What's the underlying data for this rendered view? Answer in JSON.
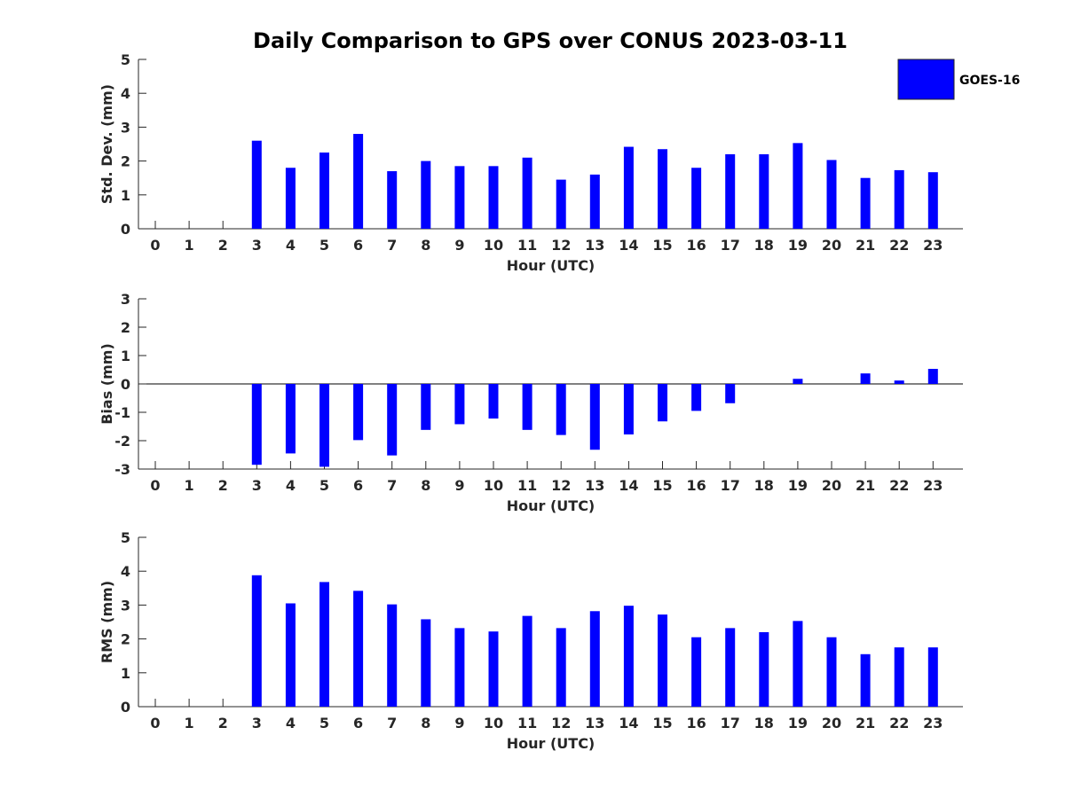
{
  "title": "Daily Comparison to GPS over CONUS 2023-03-11",
  "colors": {
    "bar": "#0000ff",
    "axis": "#262626",
    "zero_line": "#000000"
  },
  "legend": {
    "label": "GOES-16",
    "placement": "top-right"
  },
  "chart_data": [
    {
      "type": "bar",
      "ylabel": "Std. Dev. (mm)",
      "xlabel": "Hour (UTC)",
      "ylim": [
        0,
        5
      ],
      "yticks": [
        0,
        1,
        2,
        3,
        4,
        5
      ],
      "x": [
        0,
        1,
        2,
        3,
        4,
        5,
        6,
        7,
        8,
        9,
        10,
        11,
        12,
        13,
        14,
        15,
        16,
        17,
        18,
        19,
        20,
        21,
        22,
        23
      ],
      "xtick_labels": [
        "0",
        "1",
        "2",
        "3",
        "4",
        "5",
        "6",
        "7",
        "8",
        "9",
        "10",
        "11",
        "12",
        "13",
        "14",
        "15",
        "16",
        "17",
        "18",
        "19",
        "20",
        "21",
        "22",
        "23"
      ],
      "series": [
        {
          "name": "GOES-16",
          "values": [
            null,
            null,
            null,
            2.6,
            1.8,
            2.25,
            2.8,
            1.7,
            2.0,
            1.85,
            1.85,
            2.1,
            1.45,
            1.6,
            2.42,
            2.35,
            1.8,
            2.2,
            2.2,
            2.53,
            2.03,
            1.5,
            1.73,
            1.67
          ]
        }
      ]
    },
    {
      "type": "bar",
      "ylabel": "Bias (mm)",
      "xlabel": "Hour (UTC)",
      "ylim": [
        -3,
        3
      ],
      "yticks": [
        -3,
        -2,
        -1,
        0,
        1,
        2,
        3
      ],
      "x": [
        0,
        1,
        2,
        3,
        4,
        5,
        6,
        7,
        8,
        9,
        10,
        11,
        12,
        13,
        14,
        15,
        16,
        17,
        18,
        19,
        20,
        21,
        22,
        23
      ],
      "xtick_labels": [
        "0",
        "1",
        "2",
        "3",
        "4",
        "5",
        "6",
        "7",
        "8",
        "9",
        "10",
        "11",
        "12",
        "13",
        "14",
        "15",
        "16",
        "17",
        "18",
        "19",
        "20",
        "21",
        "22",
        "23"
      ],
      "series": [
        {
          "name": "GOES-16",
          "values": [
            null,
            null,
            null,
            -2.85,
            -2.45,
            -2.92,
            -1.98,
            -2.52,
            -1.62,
            -1.42,
            -1.22,
            -1.62,
            -1.8,
            -2.32,
            -1.78,
            -1.32,
            -0.95,
            -0.68,
            0.0,
            0.18,
            0.0,
            0.37,
            0.12,
            0.53
          ]
        }
      ]
    },
    {
      "type": "bar",
      "ylabel": "RMS (mm)",
      "xlabel": "Hour (UTC)",
      "ylim": [
        0,
        5
      ],
      "yticks": [
        0,
        1,
        2,
        3,
        4,
        5
      ],
      "x": [
        0,
        1,
        2,
        3,
        4,
        5,
        6,
        7,
        8,
        9,
        10,
        11,
        12,
        13,
        14,
        15,
        16,
        17,
        18,
        19,
        20,
        21,
        22,
        23
      ],
      "xtick_labels": [
        "0",
        "1",
        "2",
        "3",
        "4",
        "5",
        "6",
        "7",
        "8",
        "9",
        "10",
        "11",
        "12",
        "13",
        "14",
        "15",
        "16",
        "17",
        "18",
        "19",
        "20",
        "21",
        "22",
        "23"
      ],
      "series": [
        {
          "name": "GOES-16",
          "values": [
            null,
            null,
            null,
            3.88,
            3.05,
            3.68,
            3.42,
            3.02,
            2.58,
            2.32,
            2.22,
            2.68,
            2.32,
            2.82,
            2.98,
            2.72,
            2.05,
            2.32,
            2.2,
            2.53,
            2.05,
            1.55,
            1.75,
            1.75
          ]
        }
      ]
    }
  ]
}
